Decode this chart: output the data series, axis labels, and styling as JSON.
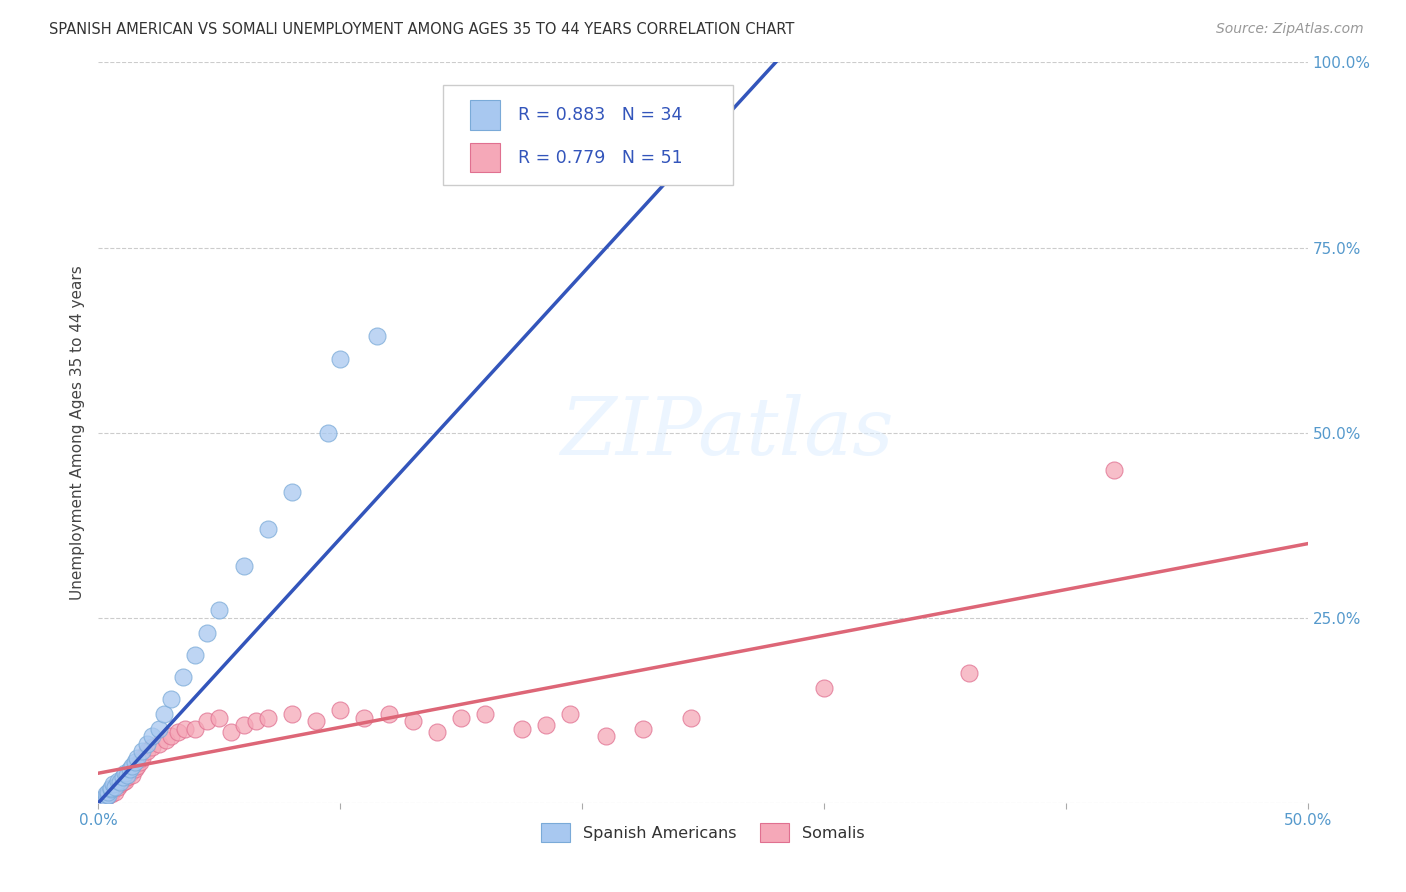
{
  "title": "SPANISH AMERICAN VS SOMALI UNEMPLOYMENT AMONG AGES 35 TO 44 YEARS CORRELATION CHART",
  "source": "Source: ZipAtlas.com",
  "ylabel": "Unemployment Among Ages 35 to 44 years",
  "xlim": [
    0.0,
    0.5
  ],
  "ylim": [
    0.0,
    1.0
  ],
  "xticks": [
    0.0,
    0.1,
    0.2,
    0.3,
    0.4,
    0.5
  ],
  "yticks": [
    0.0,
    0.25,
    0.5,
    0.75,
    1.0
  ],
  "xticklabels_show": [
    "0.0%",
    "",
    "",
    "",
    "",
    "50.0%"
  ],
  "yticklabels_show": [
    "",
    "25.0%",
    "50.0%",
    "75.0%",
    "100.0%"
  ],
  "legend_r_blue": "R = 0.883",
  "legend_n_blue": "N = 34",
  "legend_r_pink": "R = 0.779",
  "legend_n_pink": "N = 51",
  "blue_color": "#A8C8F0",
  "pink_color": "#F5A8B8",
  "blue_line_color": "#3355BB",
  "pink_line_color": "#DD6677",
  "blue_edge_color": "#7AAAD8",
  "pink_edge_color": "#E07090",
  "sa_x": [
    0.002,
    0.003,
    0.003,
    0.004,
    0.004,
    0.005,
    0.005,
    0.006,
    0.007,
    0.008,
    0.009,
    0.01,
    0.011,
    0.012,
    0.013,
    0.014,
    0.015,
    0.016,
    0.018,
    0.02,
    0.022,
    0.025,
    0.027,
    0.03,
    0.035,
    0.04,
    0.045,
    0.05,
    0.06,
    0.07,
    0.08,
    0.095,
    0.1,
    0.115
  ],
  "sa_y": [
    0.005,
    0.008,
    0.012,
    0.01,
    0.015,
    0.018,
    0.02,
    0.025,
    0.022,
    0.03,
    0.028,
    0.035,
    0.04,
    0.038,
    0.045,
    0.05,
    0.055,
    0.06,
    0.07,
    0.08,
    0.09,
    0.1,
    0.12,
    0.14,
    0.17,
    0.2,
    0.23,
    0.26,
    0.32,
    0.37,
    0.42,
    0.5,
    0.6,
    0.63
  ],
  "so_x": [
    0.002,
    0.003,
    0.004,
    0.005,
    0.005,
    0.006,
    0.006,
    0.007,
    0.008,
    0.009,
    0.01,
    0.011,
    0.012,
    0.013,
    0.014,
    0.015,
    0.016,
    0.017,
    0.018,
    0.02,
    0.022,
    0.025,
    0.028,
    0.03,
    0.033,
    0.036,
    0.04,
    0.045,
    0.05,
    0.055,
    0.06,
    0.065,
    0.07,
    0.08,
    0.09,
    0.1,
    0.11,
    0.12,
    0.13,
    0.14,
    0.15,
    0.16,
    0.175,
    0.185,
    0.195,
    0.21,
    0.225,
    0.245,
    0.3,
    0.42,
    0.36
  ],
  "so_y": [
    0.005,
    0.008,
    0.01,
    0.012,
    0.015,
    0.018,
    0.02,
    0.015,
    0.022,
    0.025,
    0.028,
    0.03,
    0.035,
    0.04,
    0.038,
    0.045,
    0.05,
    0.055,
    0.06,
    0.07,
    0.075,
    0.08,
    0.085,
    0.09,
    0.095,
    0.1,
    0.1,
    0.11,
    0.115,
    0.095,
    0.105,
    0.11,
    0.115,
    0.12,
    0.11,
    0.125,
    0.115,
    0.12,
    0.11,
    0.095,
    0.115,
    0.12,
    0.1,
    0.105,
    0.12,
    0.09,
    0.1,
    0.115,
    0.155,
    0.45,
    0.175
  ],
  "blue_line_x0": 0.0,
  "blue_line_y0": 0.0,
  "blue_line_x1": 0.28,
  "blue_line_y1": 1.0,
  "pink_line_x0": 0.0,
  "pink_line_y0": 0.04,
  "pink_line_x1": 0.5,
  "pink_line_y1": 0.35
}
